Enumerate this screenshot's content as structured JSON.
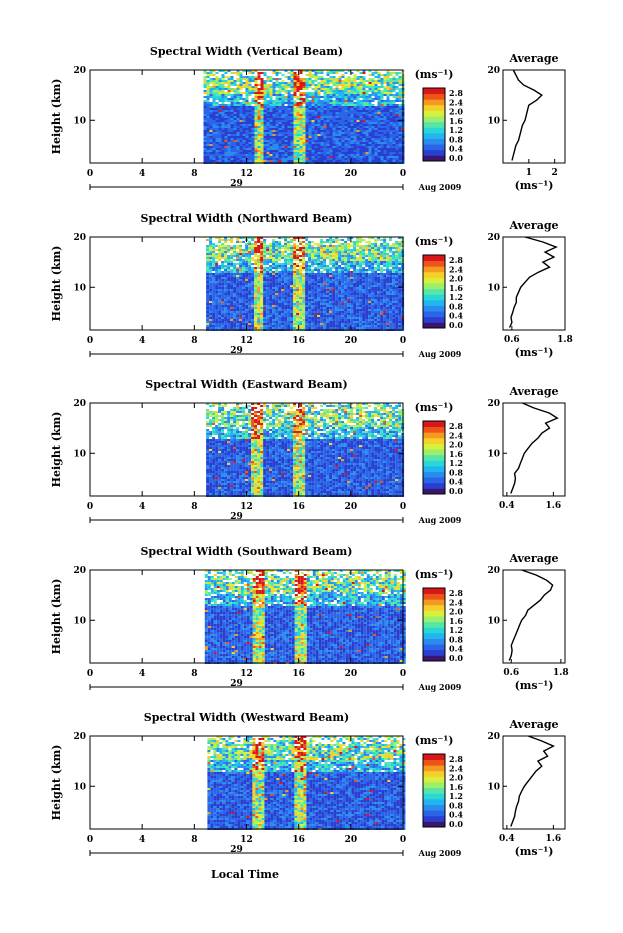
{
  "figure": {
    "xlabel": "Local Time",
    "date_label": "Aug 2009",
    "day_label": "29",
    "unit_label": "(ms⁻¹)",
    "colormap": [
      "#3a1670",
      "#2a3fd0",
      "#2a64e8",
      "#2b8cf0",
      "#22b6f0",
      "#2ad7d7",
      "#58e6a8",
      "#9bef6b",
      "#d8ef3b",
      "#f6d02a",
      "#f59a20",
      "#ee5418",
      "#d81818"
    ]
  },
  "chart_data": [
    {
      "type": "heatmap",
      "title": "Spectral Width (Vertical Beam)",
      "xlabel": "",
      "ylabel": "Height (km)",
      "xlim": [
        0,
        24
      ],
      "ylim": [
        1.5,
        20
      ],
      "xticks": [
        "0",
        "4",
        "8",
        "12",
        "16",
        "20",
        "0"
      ],
      "yticks": [
        "10",
        "20"
      ],
      "colorbar": {
        "label": "(ms⁻¹)",
        "ticks": [
          "0.0",
          "0.4",
          "0.8",
          "1.2",
          "1.6",
          "2.0",
          "2.4",
          "2.8"
        ]
      },
      "data_start_hour": 8.7,
      "highlights": [
        {
          "hour": 12.8,
          "width": 0.35
        },
        {
          "hour": 16.0,
          "width": 0.45
        }
      ],
      "average_profile": {
        "title": "Average",
        "xlabel": "(ms⁻¹)",
        "xlim": [
          0,
          2.4
        ],
        "xticks": [
          "1",
          "2"
        ],
        "xtick_values": [
          1,
          2
        ],
        "height": [
          2,
          3,
          4,
          5,
          6,
          7,
          8,
          9,
          10,
          11,
          12,
          13,
          14,
          15,
          16,
          17,
          18,
          19,
          20
        ],
        "value": [
          0.35,
          0.4,
          0.45,
          0.5,
          0.6,
          0.65,
          0.7,
          0.75,
          0.85,
          0.9,
          0.95,
          1.0,
          1.3,
          1.5,
          1.2,
          0.8,
          0.6,
          0.5,
          0.4
        ]
      }
    },
    {
      "type": "heatmap",
      "title": "Spectral Width (Northward Beam)",
      "xlabel": "",
      "ylabel": "Height (km)",
      "xlim": [
        0,
        24
      ],
      "ylim": [
        1.5,
        20
      ],
      "xticks": [
        "0",
        "4",
        "8",
        "12",
        "16",
        "20",
        "0"
      ],
      "yticks": [
        "10",
        "20"
      ],
      "colorbar": {
        "label": "(ms⁻¹)",
        "ticks": [
          "0.0",
          "0.4",
          "0.8",
          "1.2",
          "1.6",
          "2.0",
          "2.4",
          "2.8"
        ]
      },
      "data_start_hour": 8.9,
      "highlights": [
        {
          "hour": 12.8,
          "width": 0.35
        },
        {
          "hour": 16.0,
          "width": 0.45
        }
      ],
      "average_profile": {
        "title": "Average",
        "xlabel": "(ms⁻¹)",
        "xlim": [
          0.4,
          1.8
        ],
        "xticks": [
          "0.6",
          "1.8"
        ],
        "xtick_values": [
          0.6,
          1.8
        ],
        "height": [
          2,
          3,
          4,
          5,
          6,
          7,
          8,
          9,
          10,
          11,
          12,
          13,
          14,
          15,
          16,
          17,
          18,
          19,
          20
        ],
        "value": [
          0.55,
          0.6,
          0.58,
          0.62,
          0.65,
          0.7,
          0.7,
          0.75,
          0.8,
          0.9,
          1.0,
          1.2,
          1.45,
          1.3,
          1.55,
          1.35,
          1.6,
          1.3,
          0.9
        ]
      }
    },
    {
      "type": "heatmap",
      "title": "Spectral Width (Eastward Beam)",
      "xlabel": "",
      "ylabel": "Height (km)",
      "xlim": [
        0,
        24
      ],
      "ylim": [
        1.5,
        20
      ],
      "xticks": [
        "0",
        "4",
        "8",
        "12",
        "16",
        "20",
        "0"
      ],
      "yticks": [
        "10",
        "20"
      ],
      "colorbar": {
        "label": "(ms⁻¹)",
        "ticks": [
          "0.0",
          "0.4",
          "0.8",
          "1.2",
          "1.6",
          "2.0",
          "2.4",
          "2.8"
        ]
      },
      "data_start_hour": 8.9,
      "highlights": [
        {
          "hour": 12.8,
          "width": 0.45
        },
        {
          "hour": 16.0,
          "width": 0.45
        }
      ],
      "average_profile": {
        "title": "Average",
        "xlabel": "",
        "xlim": [
          0.3,
          1.9
        ],
        "xticks": [
          "0.4",
          "1.6"
        ],
        "xtick_values": [
          0.4,
          1.6
        ],
        "height": [
          2,
          3,
          4,
          5,
          6,
          7,
          8,
          9,
          10,
          11,
          12,
          13,
          14,
          15,
          16,
          17,
          18,
          19,
          20
        ],
        "value": [
          0.5,
          0.55,
          0.6,
          0.62,
          0.6,
          0.7,
          0.75,
          0.8,
          0.85,
          0.95,
          1.05,
          1.2,
          1.3,
          1.5,
          1.4,
          1.7,
          1.5,
          1.1,
          0.8
        ]
      }
    },
    {
      "type": "heatmap",
      "title": "Spectral Width (Southward Beam)",
      "xlabel": "",
      "ylabel": "Height (km)",
      "xlim": [
        0,
        24
      ],
      "ylim": [
        1.5,
        20
      ],
      "xticks": [
        "0",
        "4",
        "8",
        "12",
        "16",
        "20",
        "0"
      ],
      "yticks": [
        "10",
        "20"
      ],
      "colorbar": {
        "label": "(ms⁻¹)",
        "ticks": [
          "0.0",
          "0.4",
          "0.8",
          "1.2",
          "1.6",
          "2.0",
          "2.4",
          "2.8"
        ]
      },
      "data_start_hour": 8.8,
      "highlights": [
        {
          "hour": 12.8,
          "width": 0.4
        },
        {
          "hour": 16.0,
          "width": 0.45
        }
      ],
      "average_profile": {
        "title": "Average",
        "xlabel": "(ms⁻¹)",
        "xlim": [
          0.4,
          1.9
        ],
        "xticks": [
          "0.6",
          "1.8"
        ],
        "xtick_values": [
          0.6,
          1.8
        ],
        "height": [
          2,
          3,
          4,
          5,
          6,
          7,
          8,
          9,
          10,
          11,
          12,
          13,
          14,
          15,
          16,
          17,
          18,
          19,
          20
        ],
        "value": [
          0.55,
          0.6,
          0.62,
          0.6,
          0.65,
          0.7,
          0.75,
          0.8,
          0.85,
          0.95,
          1.0,
          1.15,
          1.3,
          1.4,
          1.55,
          1.6,
          1.45,
          1.2,
          0.85
        ]
      }
    },
    {
      "type": "heatmap",
      "title": "Spectral Width (Westward Beam)",
      "xlabel": "Local Time",
      "ylabel": "Height (km)",
      "xlim": [
        0,
        24
      ],
      "ylim": [
        1.5,
        20
      ],
      "xticks": [
        "0",
        "4",
        "8",
        "12",
        "16",
        "20",
        "0"
      ],
      "yticks": [
        "10",
        "20"
      ],
      "colorbar": {
        "label": "(ms⁻¹)",
        "ticks": [
          "0.0",
          "0.4",
          "0.8",
          "1.2",
          "1.6",
          "2.0",
          "2.4",
          "2.8"
        ]
      },
      "data_start_hour": 9.0,
      "highlights": [
        {
          "hour": 12.8,
          "width": 0.35
        },
        {
          "hour": 16.0,
          "width": 0.45
        }
      ],
      "average_profile": {
        "title": "Average",
        "xlabel": "(ms⁻¹)",
        "xlim": [
          0.3,
          1.9
        ],
        "xticks": [
          "0.4",
          "1.6"
        ],
        "xtick_values": [
          0.4,
          1.6
        ],
        "height": [
          2,
          3,
          4,
          5,
          6,
          7,
          8,
          9,
          10,
          11,
          12,
          13,
          14,
          15,
          16,
          17,
          18,
          19,
          20
        ],
        "value": [
          0.5,
          0.55,
          0.6,
          0.62,
          0.65,
          0.7,
          0.72,
          0.78,
          0.85,
          0.95,
          1.05,
          1.15,
          1.3,
          1.2,
          1.45,
          1.35,
          1.6,
          1.3,
          0.95
        ]
      }
    }
  ]
}
